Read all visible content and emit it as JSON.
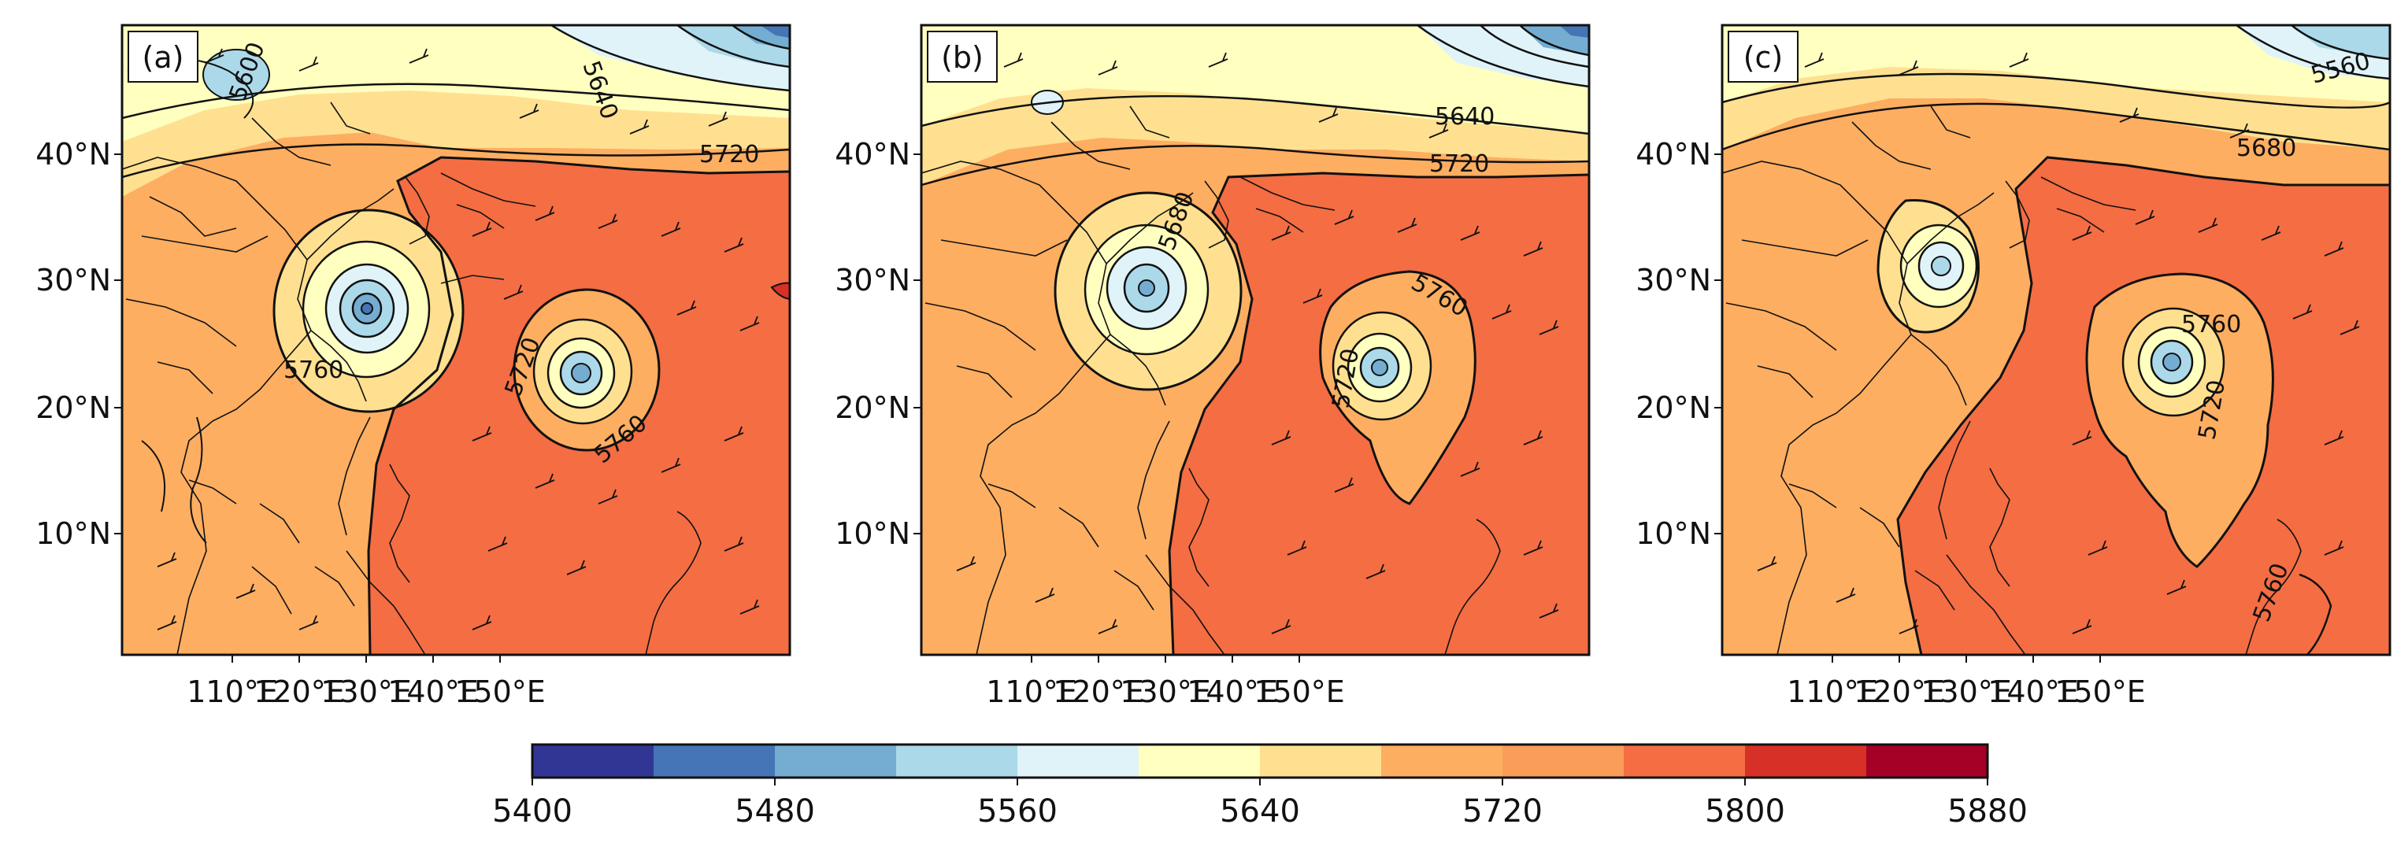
{
  "figure": {
    "panels": [
      {
        "id": "a",
        "label": "(a)"
      },
      {
        "id": "b",
        "label": "(b)"
      },
      {
        "id": "c",
        "label": "(c)"
      }
    ],
    "lat_ticks": [
      "40°N",
      "30°N",
      "20°N",
      "10°N"
    ],
    "lon_ticks": [
      "110°E",
      "120°E",
      "130°E",
      "140°E",
      "150°E"
    ],
    "contour_labels": {
      "a": [
        "5720",
        "5760",
        "5720",
        "5640",
        "5760",
        "5600"
      ],
      "b": [
        "5640",
        "5720",
        "5760",
        "5680",
        "5720"
      ],
      "c": [
        "5680",
        "5560",
        "5720",
        "5760",
        "5760"
      ]
    },
    "colorbar": {
      "tick_labels": [
        "5400",
        "5480",
        "5560",
        "5640",
        "5720",
        "5800",
        "5880"
      ],
      "levels": [
        5400,
        5440,
        5480,
        5520,
        5560,
        5600,
        5640,
        5680,
        5720,
        5760,
        5800,
        5840,
        5880
      ],
      "colors": [
        "#313695",
        "#4575b4",
        "#74add1",
        "#abd9e9",
        "#e0f3f8",
        "#ffffbf",
        "#fee090",
        "#fdae61",
        "#f99d59",
        "#f46d43",
        "#d73027",
        "#a50026"
      ]
    }
  }
}
